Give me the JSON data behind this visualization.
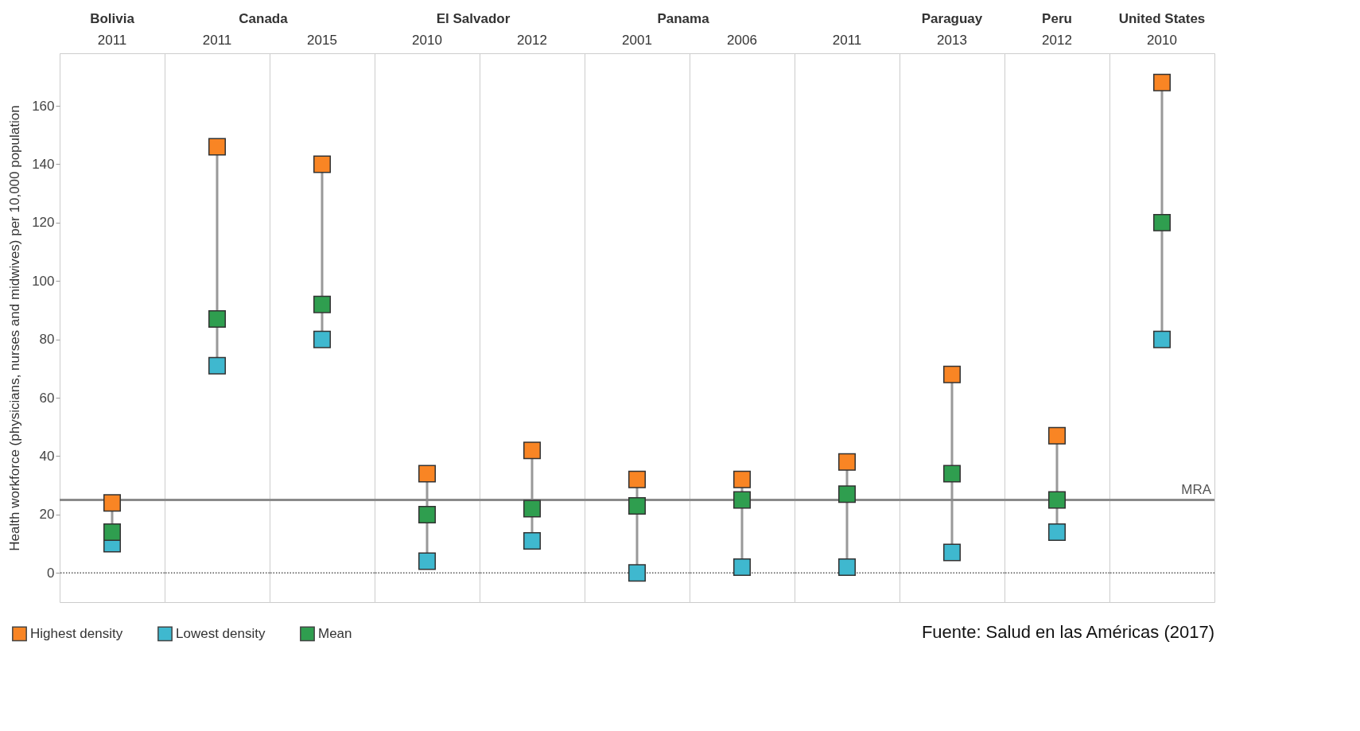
{
  "chart_data": [
    {
      "type": "scatter",
      "title": "Bolivia",
      "ylabel": "Health workforce (physicians, nurses and midwives) per 10,000 population",
      "categories": [
        "2011"
      ],
      "ylim": [
        -10,
        178
      ],
      "yticks": [
        0,
        20,
        40,
        60,
        80,
        100,
        120,
        140,
        160
      ],
      "marker": "square",
      "legend": "bottom",
      "series": [
        {
          "name": "Highest density",
          "color": "#f98524",
          "values": [
            24
          ]
        },
        {
          "name": "Lowest density",
          "color": "#3fb8cf",
          "values": [
            10
          ]
        },
        {
          "name": "Mean",
          "color": "#2f9e4f",
          "values": [
            14
          ]
        }
      ],
      "ref_lines": [
        {
          "axis": "y",
          "value": 0,
          "line_style": "dotted",
          "color": "#555555"
        },
        {
          "axis": "y",
          "value": 25,
          "color": "#8a8a8a"
        }
      ]
    },
    {
      "type": "scatter",
      "title": "Canada",
      "categories": [
        "2011"
      ],
      "ylim": [
        -10,
        178
      ],
      "marker": "square",
      "tick_labels": "x",
      "series": [
        {
          "name": "Highest density",
          "color": "#f98524",
          "values": [
            146
          ]
        },
        {
          "name": "Lowest density",
          "color": "#3fb8cf",
          "values": [
            71
          ]
        },
        {
          "name": "Mean",
          "color": "#2f9e4f",
          "values": [
            87
          ]
        }
      ],
      "ref_lines": [
        {
          "axis": "y",
          "value": 0,
          "line_style": "dotted",
          "color": "#555555"
        },
        {
          "axis": "y",
          "value": 25,
          "color": "#8a8a8a"
        }
      ]
    },
    {
      "type": "scatter",
      "categories": [
        "2015"
      ],
      "ylim": [
        -10,
        178
      ],
      "marker": "square",
      "tick_labels": "x",
      "series": [
        {
          "name": "Highest density",
          "color": "#f98524",
          "values": [
            140
          ]
        },
        {
          "name": "Lowest density",
          "color": "#3fb8cf",
          "values": [
            80
          ]
        },
        {
          "name": "Mean",
          "color": "#2f9e4f",
          "values": [
            92
          ]
        }
      ],
      "ref_lines": [
        {
          "axis": "y",
          "value": 0,
          "line_style": "dotted",
          "color": "#555555"
        },
        {
          "axis": "y",
          "value": 25,
          "color": "#8a8a8a"
        }
      ]
    },
    {
      "type": "scatter",
      "title": "El Salvador",
      "categories": [
        "2010"
      ],
      "ylim": [
        -10,
        178
      ],
      "marker": "square",
      "tick_labels": "x",
      "series": [
        {
          "name": "Highest density",
          "color": "#f98524",
          "values": [
            34
          ]
        },
        {
          "name": "Lowest density",
          "color": "#3fb8cf",
          "values": [
            4
          ]
        },
        {
          "name": "Mean",
          "color": "#2f9e4f",
          "values": [
            20
          ]
        }
      ],
      "ref_lines": [
        {
          "axis": "y",
          "value": 0,
          "line_style": "dotted",
          "color": "#555555"
        },
        {
          "axis": "y",
          "value": 25,
          "color": "#8a8a8a"
        }
      ]
    },
    {
      "type": "scatter",
      "categories": [
        "2012"
      ],
      "ylim": [
        -10,
        178
      ],
      "marker": "square",
      "tick_labels": "x",
      "series": [
        {
          "name": "Highest density",
          "color": "#f98524",
          "values": [
            42
          ]
        },
        {
          "name": "Lowest density",
          "color": "#3fb8cf",
          "values": [
            11
          ]
        },
        {
          "name": "Mean",
          "color": "#2f9e4f",
          "values": [
            22
          ]
        }
      ],
      "ref_lines": [
        {
          "axis": "y",
          "value": 0,
          "line_style": "dotted",
          "color": "#555555"
        },
        {
          "axis": "y",
          "value": 25,
          "color": "#8a8a8a"
        }
      ]
    },
    {
      "type": "scatter",
      "title": "Panama",
      "categories": [
        "2001"
      ],
      "ylim": [
        -10,
        178
      ],
      "marker": "square",
      "tick_labels": "x",
      "series": [
        {
          "name": "Highest density",
          "color": "#f98524",
          "values": [
            32
          ]
        },
        {
          "name": "Lowest density",
          "color": "#3fb8cf",
          "values": [
            0
          ]
        },
        {
          "name": "Mean",
          "color": "#2f9e4f",
          "values": [
            23
          ]
        }
      ],
      "ref_lines": [
        {
          "axis": "y",
          "value": 0,
          "line_style": "dotted",
          "color": "#555555"
        },
        {
          "axis": "y",
          "value": 25,
          "color": "#8a8a8a"
        }
      ]
    },
    {
      "type": "scatter",
      "categories": [
        "2006"
      ],
      "ylim": [
        -10,
        178
      ],
      "marker": "square",
      "tick_labels": "x",
      "series": [
        {
          "name": "Highest density",
          "color": "#f98524",
          "values": [
            32
          ]
        },
        {
          "name": "Lowest density",
          "color": "#3fb8cf",
          "values": [
            2
          ]
        },
        {
          "name": "Mean",
          "color": "#2f9e4f",
          "values": [
            25
          ]
        }
      ],
      "ref_lines": [
        {
          "axis": "y",
          "value": 0,
          "line_style": "dotted",
          "color": "#555555"
        },
        {
          "axis": "y",
          "value": 25,
          "color": "#8a8a8a"
        }
      ]
    },
    {
      "type": "scatter",
      "categories": [
        "2011"
      ],
      "ylim": [
        -10,
        178
      ],
      "marker": "square",
      "tick_labels": "x",
      "series": [
        {
          "name": "Highest density",
          "color": "#f98524",
          "values": [
            38
          ]
        },
        {
          "name": "Lowest density",
          "color": "#3fb8cf",
          "values": [
            2
          ]
        },
        {
          "name": "Mean",
          "color": "#2f9e4f",
          "values": [
            27
          ]
        }
      ],
      "ref_lines": [
        {
          "axis": "y",
          "value": 0,
          "line_style": "dotted",
          "color": "#555555"
        },
        {
          "axis": "y",
          "value": 25,
          "color": "#8a8a8a"
        }
      ]
    },
    {
      "type": "scatter",
      "title": "Paraguay",
      "categories": [
        "2013"
      ],
      "ylim": [
        -10,
        178
      ],
      "marker": "square",
      "tick_labels": "x",
      "series": [
        {
          "name": "Highest density",
          "color": "#f98524",
          "values": [
            68
          ]
        },
        {
          "name": "Lowest density",
          "color": "#3fb8cf",
          "values": [
            7
          ]
        },
        {
          "name": "Mean",
          "color": "#2f9e4f",
          "values": [
            34
          ]
        }
      ],
      "ref_lines": [
        {
          "axis": "y",
          "value": 0,
          "line_style": "dotted",
          "color": "#555555"
        },
        {
          "axis": "y",
          "value": 25,
          "color": "#8a8a8a"
        }
      ]
    },
    {
      "type": "scatter",
      "title": "Peru",
      "categories": [
        "2012"
      ],
      "ylim": [
        -10,
        178
      ],
      "marker": "square",
      "tick_labels": "x",
      "series": [
        {
          "name": "Highest density",
          "color": "#f98524",
          "values": [
            47
          ]
        },
        {
          "name": "Lowest density",
          "color": "#3fb8cf",
          "values": [
            14
          ]
        },
        {
          "name": "Mean",
          "color": "#2f9e4f",
          "values": [
            25
          ]
        }
      ],
      "ref_lines": [
        {
          "axis": "y",
          "value": 0,
          "line_style": "dotted",
          "color": "#555555"
        },
        {
          "axis": "y",
          "value": 25,
          "color": "#8a8a8a"
        }
      ]
    },
    {
      "type": "scatter",
      "title": "United States",
      "categories": [
        "2010"
      ],
      "ylim": [
        -10,
        178
      ],
      "marker": "square",
      "tick_labels": "x",
      "series": [
        {
          "name": "Highest density",
          "color": "#f98524",
          "values": [
            168
          ]
        },
        {
          "name": "Lowest density",
          "color": "#3fb8cf",
          "values": [
            80
          ]
        },
        {
          "name": "Mean",
          "color": "#2f9e4f",
          "values": [
            120
          ]
        }
      ],
      "ref_lines": [
        {
          "axis": "y",
          "value": 0,
          "line_style": "dotted",
          "color": "#555555"
        },
        {
          "axis": "y",
          "value": 25,
          "color": "#8a8a8a",
          "label": "MRA"
        }
      ],
      "annotations": [
        "Fuente: Salud en las Américas (2017)"
      ]
    }
  ]
}
